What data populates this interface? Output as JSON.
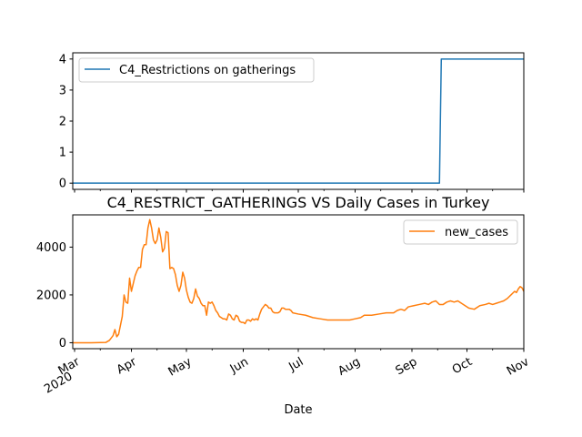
{
  "chart_data": [
    {
      "type": "line",
      "title": "",
      "xlabel": "",
      "ylabel": "",
      "x_range": [
        "2020-02-29",
        "2020-11-01"
      ],
      "ylim": [
        -0.2,
        4.2
      ],
      "y_ticks": [
        0,
        1,
        2,
        3,
        4
      ],
      "y_tick_labels": [
        "0",
        "1",
        "2",
        "3",
        "4"
      ],
      "legend_position": "top-left",
      "grid": false,
      "series": [
        {
          "name": "C4_Restrictions on gatherings",
          "color": "#1f77b4",
          "points": [
            [
              "2020-02-29",
              0
            ],
            [
              "2020-09-16",
              0
            ],
            [
              "2020-09-17",
              4
            ],
            [
              "2020-11-01",
              4
            ]
          ]
        }
      ]
    },
    {
      "type": "line",
      "title": "C4_RESTRICT_GATHERINGS VS Daily Cases in Turkey",
      "xlabel": "Date",
      "ylabel": "",
      "x_range": [
        "2020-02-29",
        "2020-11-01"
      ],
      "ylim": [
        -250,
        5350
      ],
      "y_ticks": [
        0,
        2000,
        4000
      ],
      "y_tick_labels": [
        "0",
        "2000",
        "4000"
      ],
      "x_ticks": [
        "2020-03-01",
        "2020-04-01",
        "2020-05-01",
        "2020-06-01",
        "2020-07-01",
        "2020-08-01",
        "2020-09-01",
        "2020-10-01",
        "2020-11-01"
      ],
      "x_tick_labels": [
        "Mar\n2020",
        "Apr",
        "May",
        "Jun",
        "Jul",
        "Aug",
        "Sep",
        "Oct",
        "Nov"
      ],
      "legend_position": "top-right",
      "grid": false,
      "series": [
        {
          "name": "new_cases",
          "color": "#ff7f0e",
          "points": [
            [
              "2020-02-29",
              0
            ],
            [
              "2020-03-10",
              0
            ],
            [
              "2020-03-18",
              10
            ],
            [
              "2020-03-20",
              100
            ],
            [
              "2020-03-22",
              300
            ],
            [
              "2020-03-23",
              550
            ],
            [
              "2020-03-24",
              250
            ],
            [
              "2020-03-25",
              350
            ],
            [
              "2020-03-27",
              1100
            ],
            [
              "2020-03-28",
              2000
            ],
            [
              "2020-03-29",
              1700
            ],
            [
              "2020-03-30",
              1650
            ],
            [
              "2020-03-31",
              2700
            ],
            [
              "2020-04-01",
              2150
            ],
            [
              "2020-04-03",
              2800
            ],
            [
              "2020-04-04",
              3000
            ],
            [
              "2020-04-05",
              3150
            ],
            [
              "2020-04-06",
              3150
            ],
            [
              "2020-04-07",
              3900
            ],
            [
              "2020-04-08",
              4100
            ],
            [
              "2020-04-09",
              4100
            ],
            [
              "2020-04-10",
              4800
            ],
            [
              "2020-04-11",
              5150
            ],
            [
              "2020-04-12",
              4800
            ],
            [
              "2020-04-13",
              4300
            ],
            [
              "2020-04-14",
              4150
            ],
            [
              "2020-04-15",
              4300
            ],
            [
              "2020-04-16",
              4800
            ],
            [
              "2020-04-17",
              4400
            ],
            [
              "2020-04-18",
              3800
            ],
            [
              "2020-04-19",
              3950
            ],
            [
              "2020-04-20",
              4650
            ],
            [
              "2020-04-21",
              4600
            ],
            [
              "2020-04-22",
              3100
            ],
            [
              "2020-04-23",
              3150
            ],
            [
              "2020-04-24",
              3100
            ],
            [
              "2020-04-25",
              2850
            ],
            [
              "2020-04-26",
              2400
            ],
            [
              "2020-04-27",
              2150
            ],
            [
              "2020-04-28",
              2400
            ],
            [
              "2020-04-29",
              2950
            ],
            [
              "2020-04-30",
              2700
            ],
            [
              "2020-05-01",
              2200
            ],
            [
              "2020-05-02",
              1900
            ],
            [
              "2020-05-03",
              1700
            ],
            [
              "2020-05-04",
              1650
            ],
            [
              "2020-05-05",
              1850
            ],
            [
              "2020-05-06",
              2250
            ],
            [
              "2020-05-07",
              1950
            ],
            [
              "2020-05-08",
              1850
            ],
            [
              "2020-05-09",
              1650
            ],
            [
              "2020-05-10",
              1550
            ],
            [
              "2020-05-11",
              1550
            ],
            [
              "2020-05-12",
              1150
            ],
            [
              "2020-05-13",
              1700
            ],
            [
              "2020-05-14",
              1650
            ],
            [
              "2020-05-15",
              1700
            ],
            [
              "2020-05-16",
              1550
            ],
            [
              "2020-05-17",
              1350
            ],
            [
              "2020-05-18",
              1250
            ],
            [
              "2020-05-19",
              1100
            ],
            [
              "2020-05-20",
              1050
            ],
            [
              "2020-05-21",
              1000
            ],
            [
              "2020-05-22",
              1000
            ],
            [
              "2020-05-23",
              950
            ],
            [
              "2020-05-24",
              1200
            ],
            [
              "2020-05-25",
              1150
            ],
            [
              "2020-05-26",
              1000
            ],
            [
              "2020-05-27",
              950
            ],
            [
              "2020-05-28",
              1150
            ],
            [
              "2020-05-29",
              1100
            ],
            [
              "2020-05-30",
              900
            ],
            [
              "2020-05-31",
              850
            ],
            [
              "2020-06-01",
              850
            ],
            [
              "2020-06-02",
              800
            ],
            [
              "2020-06-03",
              950
            ],
            [
              "2020-06-04",
              950
            ],
            [
              "2020-06-05",
              900
            ],
            [
              "2020-06-06",
              1000
            ],
            [
              "2020-06-07",
              950
            ],
            [
              "2020-06-08",
              1000
            ],
            [
              "2020-06-09",
              950
            ],
            [
              "2020-06-10",
              1200
            ],
            [
              "2020-06-11",
              1400
            ],
            [
              "2020-06-12",
              1500
            ],
            [
              "2020-06-13",
              1600
            ],
            [
              "2020-06-14",
              1550
            ],
            [
              "2020-06-15",
              1450
            ],
            [
              "2020-06-16",
              1450
            ],
            [
              "2020-06-17",
              1300
            ],
            [
              "2020-06-18",
              1250
            ],
            [
              "2020-06-19",
              1250
            ],
            [
              "2020-06-20",
              1250
            ],
            [
              "2020-06-21",
              1300
            ],
            [
              "2020-06-22",
              1450
            ],
            [
              "2020-06-23",
              1450
            ],
            [
              "2020-06-24",
              1400
            ],
            [
              "2020-06-25",
              1400
            ],
            [
              "2020-06-26",
              1400
            ],
            [
              "2020-06-27",
              1350
            ],
            [
              "2020-06-28",
              1250
            ],
            [
              "2020-07-01",
              1200
            ],
            [
              "2020-07-05",
              1150
            ],
            [
              "2020-07-09",
              1050
            ],
            [
              "2020-07-13",
              1000
            ],
            [
              "2020-07-17",
              950
            ],
            [
              "2020-07-21",
              950
            ],
            [
              "2020-07-25",
              950
            ],
            [
              "2020-07-29",
              950
            ],
            [
              "2020-08-01",
              1000
            ],
            [
              "2020-08-04",
              1050
            ],
            [
              "2020-08-06",
              1150
            ],
            [
              "2020-08-10",
              1150
            ],
            [
              "2020-08-14",
              1200
            ],
            [
              "2020-08-18",
              1250
            ],
            [
              "2020-08-22",
              1250
            ],
            [
              "2020-08-24",
              1350
            ],
            [
              "2020-08-26",
              1400
            ],
            [
              "2020-08-28",
              1350
            ],
            [
              "2020-08-30",
              1500
            ],
            [
              "2020-09-02",
              1550
            ],
            [
              "2020-09-05",
              1600
            ],
            [
              "2020-09-08",
              1650
            ],
            [
              "2020-09-10",
              1600
            ],
            [
              "2020-09-12",
              1700
            ],
            [
              "2020-09-14",
              1750
            ],
            [
              "2020-09-16",
              1600
            ],
            [
              "2020-09-18",
              1600
            ],
            [
              "2020-09-20",
              1700
            ],
            [
              "2020-09-22",
              1750
            ],
            [
              "2020-09-24",
              1700
            ],
            [
              "2020-09-26",
              1750
            ],
            [
              "2020-09-28",
              1650
            ],
            [
              "2020-09-30",
              1550
            ],
            [
              "2020-10-02",
              1450
            ],
            [
              "2020-10-05",
              1400
            ],
            [
              "2020-10-08",
              1550
            ],
            [
              "2020-10-11",
              1600
            ],
            [
              "2020-10-13",
              1650
            ],
            [
              "2020-10-15",
              1600
            ],
            [
              "2020-10-17",
              1650
            ],
            [
              "2020-10-19",
              1700
            ],
            [
              "2020-10-21",
              1750
            ],
            [
              "2020-10-23",
              1850
            ],
            [
              "2020-10-25",
              2000
            ],
            [
              "2020-10-27",
              2150
            ],
            [
              "2020-10-28",
              2100
            ],
            [
              "2020-10-29",
              2250
            ],
            [
              "2020-10-30",
              2350
            ],
            [
              "2020-10-31",
              2300
            ],
            [
              "2020-11-01",
              2150
            ]
          ]
        }
      ]
    }
  ]
}
